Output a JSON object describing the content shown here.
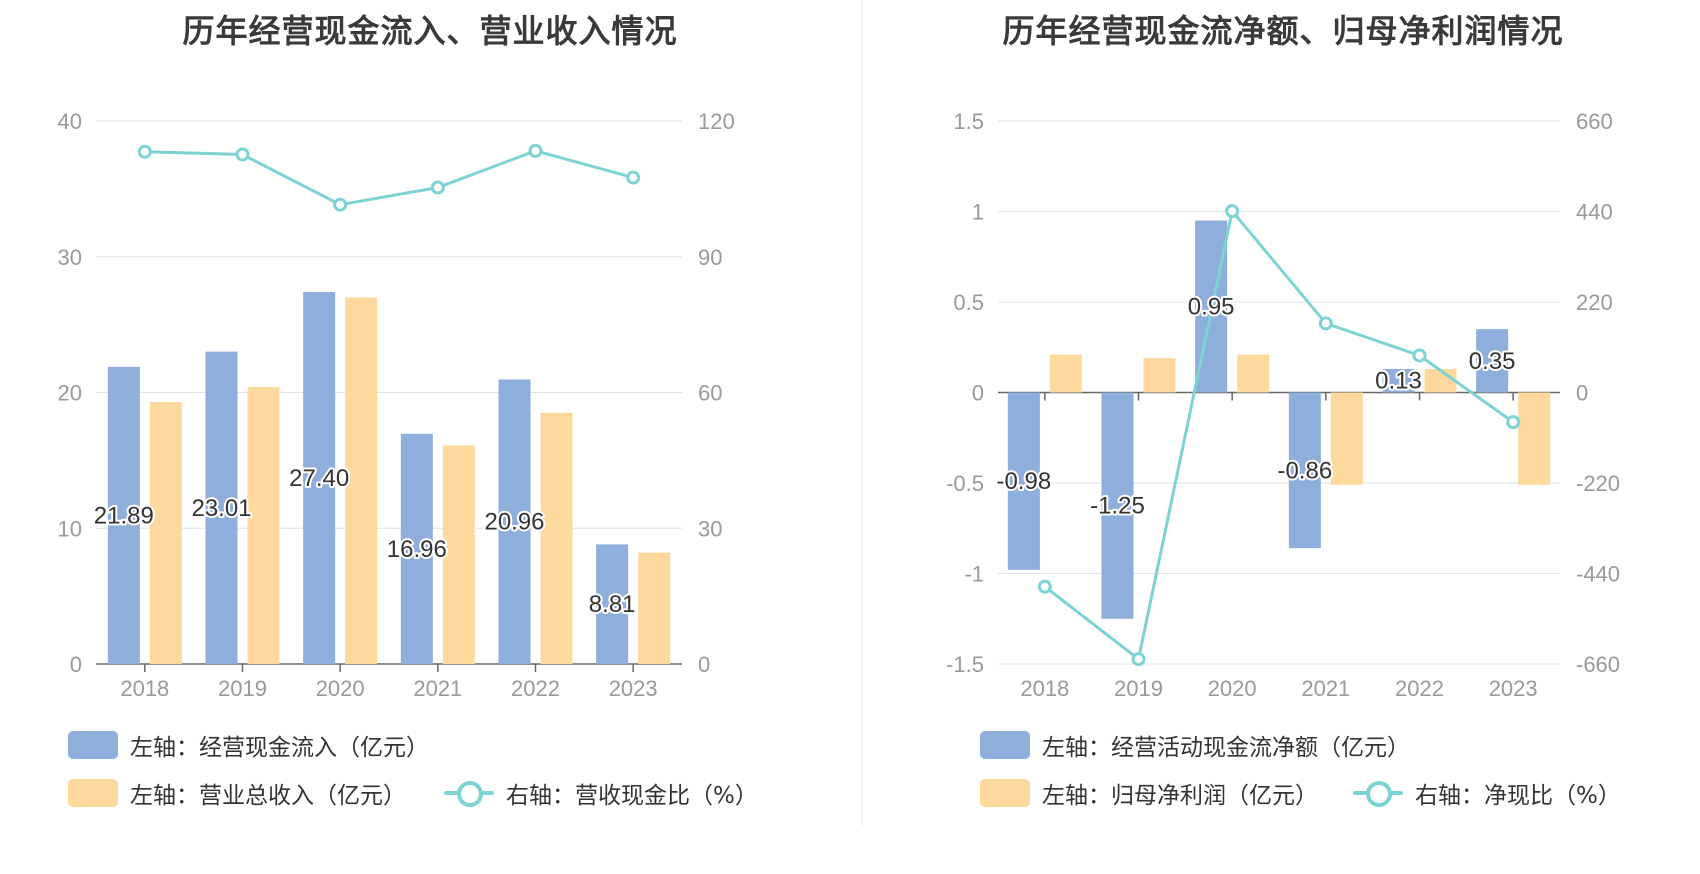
{
  "colors": {
    "bar1": "#8eaedb",
    "bar2": "#fdd99d",
    "line": "#7dd3d3",
    "grid": "#dfe3ee",
    "axis_text": "#999999",
    "label": "#333333"
  },
  "chart_data": [
    {
      "type": "bar",
      "title": "历年经营现金流入、营业收入情况",
      "categories": [
        "2018",
        "2019",
        "2020",
        "2021",
        "2022",
        "2023"
      ],
      "y_left": {
        "min": 0,
        "max": 40,
        "ticks": [
          "0",
          "10",
          "20",
          "30",
          "40"
        ]
      },
      "y_right": {
        "min": 0,
        "max": 120,
        "ticks": [
          "0",
          "30",
          "60",
          "90",
          "120"
        ]
      },
      "grid": true,
      "legend_position": "bottom",
      "series": [
        {
          "name": "左轴：经营现金流入（亿元）",
          "type": "bar",
          "axis": "left",
          "values": [
            21.89,
            23.01,
            27.4,
            16.96,
            20.96,
            8.81
          ],
          "labels": [
            "21.89",
            "23.01",
            "27.40",
            "16.96",
            "20.96",
            "8.81"
          ]
        },
        {
          "name": "左轴：营业总收入（亿元）",
          "type": "bar",
          "axis": "left",
          "values": [
            19.3,
            20.4,
            27.0,
            16.1,
            18.5,
            8.2
          ]
        },
        {
          "name": "右轴：营收现金比（%）",
          "type": "line",
          "axis": "right",
          "values": [
            113.2,
            112.6,
            101.5,
            105.3,
            113.4,
            107.5
          ]
        }
      ]
    },
    {
      "type": "bar",
      "title": "历年经营现金流净额、归母净利润情况",
      "categories": [
        "2018",
        "2019",
        "2020",
        "2021",
        "2022",
        "2023"
      ],
      "y_left": {
        "min": -1.5,
        "max": 1.5,
        "ticks": [
          "-1.5",
          "-1",
          "-0.5",
          "0",
          "0.5",
          "1",
          "1.5"
        ]
      },
      "y_right": {
        "min": -660,
        "max": 660,
        "ticks": [
          "-660",
          "-440",
          "-220",
          "0",
          "220",
          "440",
          "660"
        ]
      },
      "grid": true,
      "legend_position": "bottom",
      "series": [
        {
          "name": "左轴：经营活动现金流净额（亿元）",
          "type": "bar",
          "axis": "left",
          "values": [
            -0.98,
            -1.25,
            0.95,
            -0.86,
            0.13,
            0.35
          ],
          "labels": [
            "-0.98",
            "-1.25",
            "0.95",
            "-0.86",
            "0.13",
            "0.35"
          ]
        },
        {
          "name": "左轴：归母净利润（亿元）",
          "type": "bar",
          "axis": "left",
          "values": [
            0.21,
            0.19,
            0.21,
            -0.51,
            0.13,
            -0.51
          ]
        },
        {
          "name": "右轴：净现比（%）",
          "type": "line",
          "axis": "right",
          "values": [
            -472,
            -648,
            441,
            168,
            90,
            -72
          ]
        }
      ]
    }
  ]
}
